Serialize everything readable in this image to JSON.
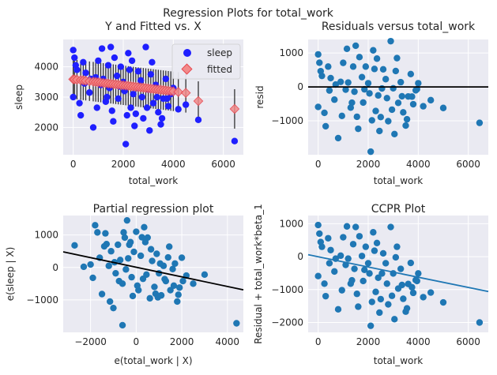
{
  "figure_title": "Regression Plots for total_work",
  "colors": {
    "panel_bg": "#eaeaf2",
    "grid": "#ffffff",
    "scatter_blue_obs": "#1f1fff",
    "scatter_resid": "#1f77b4",
    "fitted": "#e8474f",
    "errorbar": "#111111",
    "fit_line_black": "#000000",
    "fit_line_blue": "#1f77b4"
  },
  "chart_data": [
    {
      "id": "yfit",
      "type": "scatter",
      "title": "Y and Fitted vs. X",
      "xlabel": "total_work",
      "ylabel": "sleep",
      "xlim": [
        -400,
        6800
      ],
      "ylim": [
        1100,
        4900
      ],
      "xticks": [
        0,
        2000,
        4000,
        6000
      ],
      "yticks": [
        2000,
        3000,
        4000
      ],
      "legend": {
        "placement": "top-right",
        "entries": [
          "sleep",
          "fitted"
        ]
      },
      "series": [
        {
          "name": "sleep",
          "kind": "observed",
          "x": [
            0,
            0,
            50,
            150,
            300,
            400,
            500,
            650,
            800,
            900,
            1000,
            1100,
            1200,
            1300,
            1400,
            1450,
            1550,
            1650,
            1750,
            1800,
            1900,
            2000,
            2050,
            2100,
            2200,
            2250,
            2300,
            2400,
            2500,
            2600,
            2700,
            2800,
            2900,
            3000,
            3100,
            3200,
            3300,
            3400,
            3500,
            3600,
            3700,
            3800,
            3900,
            4000,
            4200,
            4500,
            5000,
            6450,
            100,
            250,
            450,
            700,
            950,
            1150,
            1350,
            1600,
            1850,
            2150,
            2350,
            2550,
            2750,
            2950,
            3150,
            3350,
            3550,
            3750,
            3950,
            1500,
            2450,
            3050
          ],
          "y": [
            4550,
            3000,
            4300,
            3900,
            2400,
            4150,
            3800,
            3150,
            2000,
            3650,
            4200,
            3400,
            3600,
            2850,
            4050,
            3300,
            2550,
            4300,
            3700,
            2950,
            4000,
            3500,
            3200,
            1450,
            4450,
            3900,
            2650,
            3100,
            2450,
            3850,
            3550,
            2300,
            4650,
            3250,
            3750,
            2800,
            3400,
            2500,
            2100,
            2950,
            3600,
            2700,
            3100,
            3300,
            2600,
            2750,
            2250,
            1550,
            4050,
            2800,
            3450,
            3600,
            2650,
            4600,
            3000,
            2200,
            3350,
            2400,
            4200,
            3300,
            3000,
            2650,
            4150,
            3000,
            2300,
            2950,
            3150,
            4650,
            2050,
            1900
          ]
        },
        {
          "name": "fitted",
          "kind": "fitted",
          "x": [
            0,
            50,
            150,
            300,
            400,
            500,
            650,
            800,
            900,
            1000,
            1100,
            1200,
            1300,
            1400,
            1500,
            1600,
            1700,
            1800,
            1900,
            2000,
            2100,
            2200,
            2300,
            2400,
            2500,
            2600,
            2700,
            2800,
            2900,
            3000,
            3100,
            3200,
            3300,
            3400,
            3500,
            3600,
            3700,
            3800,
            3900,
            4000,
            4200,
            4500,
            5000,
            6450
          ],
          "y": [
            3590,
            3585,
            3575,
            3560,
            3550,
            3540,
            3525,
            3510,
            3500,
            3490,
            3480,
            3470,
            3460,
            3450,
            3440,
            3430,
            3420,
            3410,
            3400,
            3390,
            3380,
            3370,
            3360,
            3350,
            3340,
            3330,
            3320,
            3310,
            3300,
            3290,
            3280,
            3270,
            3260,
            3250,
            3240,
            3230,
            3220,
            3210,
            3200,
            3190,
            3170,
            3140,
            2870,
            2610
          ]
        }
      ]
    },
    {
      "id": "resid",
      "type": "scatter",
      "title": "Residuals versus total_work",
      "xlabel": "total_work",
      "ylabel": "resid",
      "xlim": [
        -400,
        6800
      ],
      "ylim": [
        -2000,
        1400
      ],
      "xticks": [
        0,
        2000,
        4000,
        6000
      ],
      "yticks": [
        -1000,
        0,
        1000
      ],
      "hline": 0,
      "series": [
        {
          "name": "resid",
          "x": [
            0,
            0,
            50,
            150,
            300,
            400,
            500,
            650,
            800,
            900,
            1000,
            1100,
            1200,
            1300,
            1400,
            1450,
            1550,
            1650,
            1750,
            1800,
            1900,
            2000,
            2050,
            2100,
            2200,
            2250,
            2300,
            2400,
            2500,
            2600,
            2700,
            2800,
            2900,
            3000,
            3100,
            3200,
            3300,
            3400,
            3500,
            3600,
            3700,
            3800,
            3900,
            4000,
            4200,
            4500,
            5000,
            6450,
            100,
            250,
            450,
            700,
            950,
            1150,
            1350,
            1600,
            1850,
            2150,
            2350,
            2550,
            2750,
            2950,
            3150,
            3350,
            3550,
            3750,
            3950,
            1500,
            2450,
            3050
          ],
          "y": [
            960,
            -590,
            715,
            325,
            -1160,
            600,
            260,
            -375,
            -1510,
            150,
            710,
            -80,
            130,
            -610,
            600,
            -140,
            -880,
            880,
            290,
            -460,
            600,
            110,
            -190,
            -1910,
            1080,
            530,
            -710,
            -250,
            -890,
            520,
            230,
            -1010,
            1350,
            -40,
            470,
            -470,
            140,
            -750,
            -1140,
            -280,
            380,
            -510,
            -100,
            110,
            -570,
            -390,
            -620,
            -1060,
            465,
            -765,
            -105,
            70,
            -855,
            1125,
            -465,
            -1235,
            -70,
            -985,
            835,
            -45,
            -330,
            -670,
            850,
            -275,
            -955,
            -285,
            -65,
            1215,
            -1300,
            -1390
          ]
        }
      ]
    },
    {
      "id": "partreg",
      "type": "scatter",
      "title": "Partial regression plot",
      "xlabel": "e(total_work | X)",
      "ylabel": "e(sleep | X)",
      "xlim": [
        -3200,
        4700
      ],
      "ylim": [
        -2000,
        1600
      ],
      "xticks": [
        -2000,
        0,
        2000,
        4000
      ],
      "yticks": [
        -1000,
        0,
        1000
      ],
      "fit_line": {
        "x": [
          -3200,
          4700
        ],
        "y": [
          480,
          -690
        ]
      },
      "series": [
        {
          "name": "e(sleep | X)",
          "x": [
            -2700,
            -2000,
            -1800,
            -1600,
            -1500,
            -1350,
            -1200,
            -1100,
            -1000,
            -900,
            -800,
            -700,
            -600,
            -500,
            -450,
            -400,
            -300,
            -200,
            -100,
            0,
            100,
            200,
            300,
            400,
            500,
            600,
            700,
            800,
            900,
            1000,
            1100,
            1200,
            1300,
            1400,
            1500,
            1600,
            1700,
            1800,
            1900,
            2000,
            2200,
            2500,
            3000,
            4400,
            -1900,
            -1700,
            -1300,
            -1150,
            -950,
            -750,
            -550,
            -350,
            -150,
            50,
            250,
            450,
            650,
            850,
            1050,
            1250,
            1450,
            1650,
            1850,
            2050,
            -600,
            350,
            950,
            -250,
            -2300,
            -1400
          ],
          "y": [
            680,
            90,
            1300,
            300,
            -820,
            1050,
            50,
            500,
            -1250,
            -180,
            700,
            230,
            -500,
            920,
            -60,
            1450,
            700,
            -300,
            480,
            1100,
            -700,
            360,
            -350,
            780,
            920,
            -950,
            200,
            -600,
            420,
            -180,
            -860,
            50,
            -420,
            310,
            -700,
            -50,
            120,
            -1050,
            -620,
            300,
            -250,
            -500,
            -220,
            -1720,
            -320,
            1080,
            720,
            -1050,
            160,
            -420,
            1080,
            280,
            -880,
            -560,
            930,
            -220,
            560,
            -810,
            120,
            -360,
            640,
            -560,
            -840,
            -420,
            -1780,
            1240,
            -920,
            780,
            20,
            650
          ]
        }
      ]
    },
    {
      "id": "ccpr",
      "type": "scatter",
      "title": "CCPR Plot",
      "xlabel": "total_work",
      "ylabel": "Residual + total_work*beta_1",
      "xlim": [
        -400,
        6800
      ],
      "ylim": [
        -2300,
        1250
      ],
      "xticks": [
        0,
        2000,
        4000,
        6000
      ],
      "yticks": [
        -2000,
        -1000,
        0,
        1000
      ],
      "fit_line": {
        "x": [
          -400,
          6800
        ],
        "y": [
          60,
          -1060
        ]
      },
      "series": [
        {
          "name": "Residual + total_work*beta_1",
          "x": [
            0,
            0,
            50,
            150,
            300,
            400,
            500,
            650,
            800,
            900,
            1000,
            1100,
            1200,
            1300,
            1400,
            1450,
            1550,
            1650,
            1750,
            1800,
            1900,
            2000,
            2050,
            2100,
            2200,
            2250,
            2300,
            2400,
            2500,
            2600,
            2700,
            2800,
            2900,
            3000,
            3100,
            3200,
            3300,
            3400,
            3500,
            3600,
            3700,
            3800,
            3900,
            4000,
            4200,
            4500,
            5000,
            6450,
            100,
            250,
            450,
            700,
            950,
            1150,
            1350,
            1600,
            1850,
            2150,
            2350,
            2550,
            2750,
            2950,
            3150,
            3350,
            3550,
            3750,
            3950,
            1500,
            2450,
            3050
          ],
          "y": [
            960,
            -590,
            700,
            300,
            -1200,
            560,
            200,
            -450,
            -1600,
            30,
            590,
            -250,
            -60,
            -820,
            380,
            -370,
            -1130,
            620,
            20,
            -740,
            300,
            -200,
            -510,
            -2100,
            740,
            180,
            -1070,
            -640,
            -1290,
            100,
            -200,
            -1450,
            900,
            -510,
            -20,
            -970,
            -370,
            -1280,
            -1670,
            -830,
            -190,
            -1100,
            -710,
            -510,
            -1230,
            -1090,
            -1390,
            -2000,
            445,
            -820,
            -200,
            -60,
            -1020,
            920,
            -720,
            -1520,
            -400,
            -1375,
            415,
            -510,
            -820,
            -1190,
            300,
            -860,
            -1570,
            -930,
            -740,
            900,
            -1700,
            -1900
          ]
        }
      ]
    }
  ]
}
